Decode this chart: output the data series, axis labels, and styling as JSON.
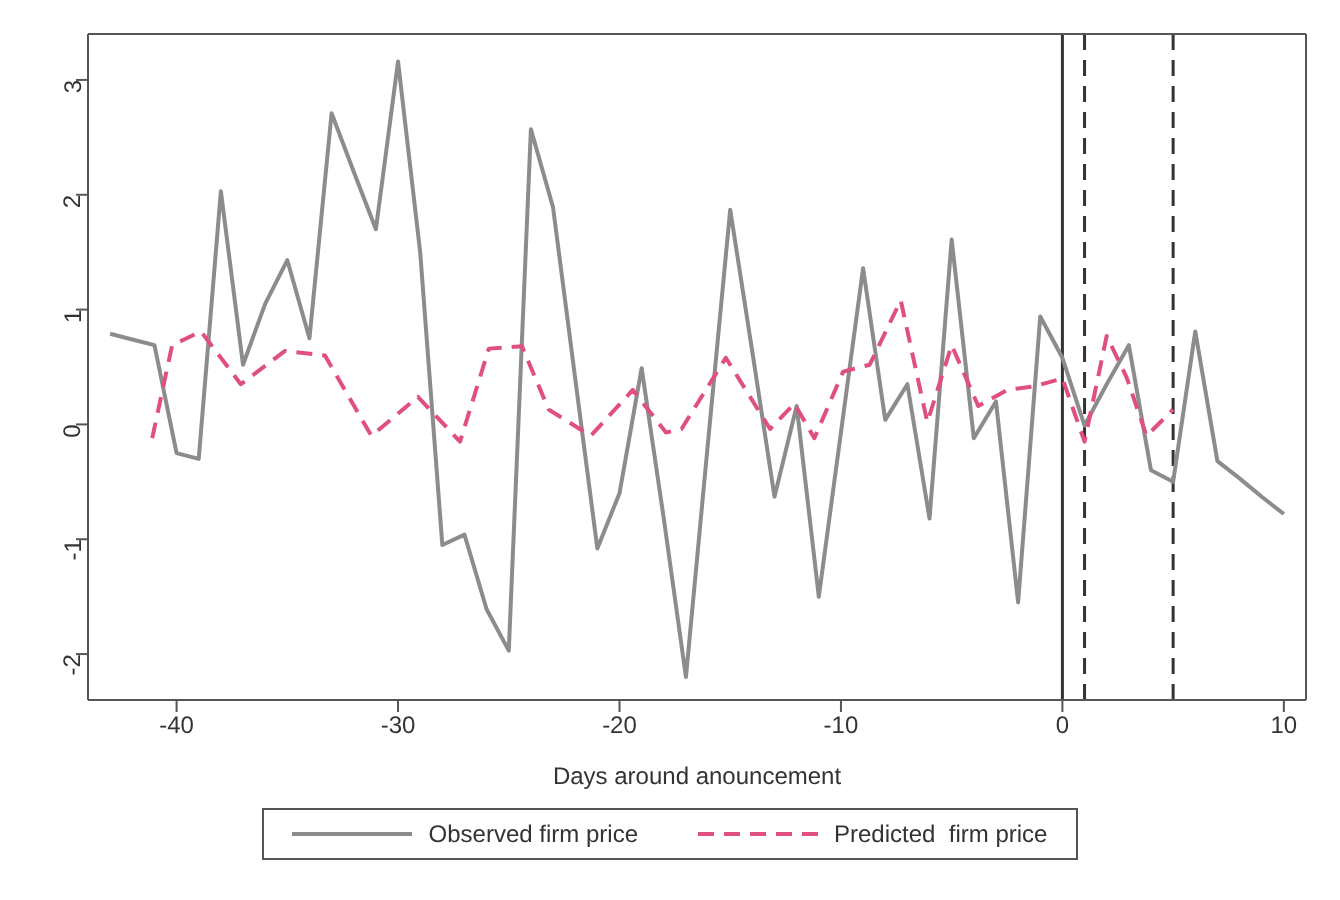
{
  "chart_data": {
    "type": "line",
    "xlabel": "Days around anouncement",
    "xlim": [
      -44,
      11
    ],
    "xticks": [
      -40,
      -30,
      -20,
      -10,
      0,
      10
    ],
    "ylim": [
      -2.4,
      3.4
    ],
    "yticks": [
      -2,
      -1,
      0,
      1,
      2,
      3
    ],
    "grid": false,
    "legend": "bottom",
    "marker": "none",
    "series": [
      {
        "name": "Observed firm price",
        "color": "#8c8c8c",
        "line_style": "solid",
        "x": [
          -43,
          -42,
          -41,
          -40,
          -39,
          -38,
          -37,
          -36,
          -35,
          -34,
          -33,
          -32,
          -31,
          -30,
          -29,
          -28,
          -27,
          -26,
          -25,
          -24,
          -23,
          -22,
          -21,
          -20,
          -19,
          -18,
          -17,
          -16,
          -15,
          -14,
          -13,
          -12,
          -11,
          -10,
          -9,
          -8,
          -7,
          -6,
          -5,
          -4,
          -3,
          -2,
          -1,
          0,
          1,
          2,
          3,
          4,
          5,
          6,
          7,
          8,
          9,
          10
        ],
        "values": [
          0.79,
          0.74,
          0.69,
          -0.25,
          -0.3,
          2.03,
          0.52,
          1.05,
          1.43,
          0.75,
          2.71,
          2.2,
          1.7,
          3.16,
          1.5,
          -1.05,
          -0.96,
          -1.61,
          -1.97,
          2.57,
          1.89,
          0.4,
          -1.08,
          -0.6,
          0.49,
          -0.82,
          -2.2,
          -0.15,
          1.87,
          0.63,
          -0.63,
          0.16,
          -1.5,
          -0.07,
          1.36,
          0.04,
          0.35,
          -0.82,
          1.61,
          -0.12,
          0.2,
          -1.55,
          0.94,
          0.58,
          -0.01,
          0.35,
          0.69,
          -0.4,
          -0.5,
          0.81,
          -0.32,
          -0.47,
          -0.63,
          -0.78
        ]
      },
      {
        "name": "Predicted  firm price",
        "color": "#e0507e",
        "line_style": "dashed",
        "x": [
          -41.1,
          -40.2,
          -38.9,
          -37.1,
          -35.1,
          -33.3,
          -31.2,
          -29.1,
          -27.2,
          -25.9,
          -24.4,
          -23.2,
          -21.3,
          -19.4,
          -17.9,
          -17.2,
          -15.2,
          -13.2,
          -12.1,
          -11.2,
          -9.9,
          -8.7,
          -7.3,
          -6.1,
          -5.0,
          -3.8,
          -2.5,
          -1.3,
          0,
          1,
          2,
          2.9,
          3.8,
          5
        ],
        "values": [
          -0.12,
          0.69,
          0.81,
          0.35,
          0.64,
          0.6,
          -0.1,
          0.24,
          -0.15,
          0.66,
          0.68,
          0.13,
          -0.1,
          0.3,
          -0.07,
          -0.04,
          0.58,
          -0.04,
          0.18,
          -0.12,
          0.46,
          0.52,
          1.08,
          0.02,
          0.69,
          0.16,
          0.3,
          0.33,
          0.4,
          -0.15,
          0.77,
          0.41,
          -0.1,
          0.13
        ]
      }
    ],
    "ref_lines": [
      {
        "axis": "x",
        "value": 0,
        "color": "#333333",
        "line_style": "solid"
      },
      {
        "axis": "x",
        "value": 1,
        "color": "#333333",
        "line_style": "dashed"
      },
      {
        "axis": "x",
        "value": 5,
        "color": "#333333",
        "line_style": "dashed"
      }
    ]
  }
}
